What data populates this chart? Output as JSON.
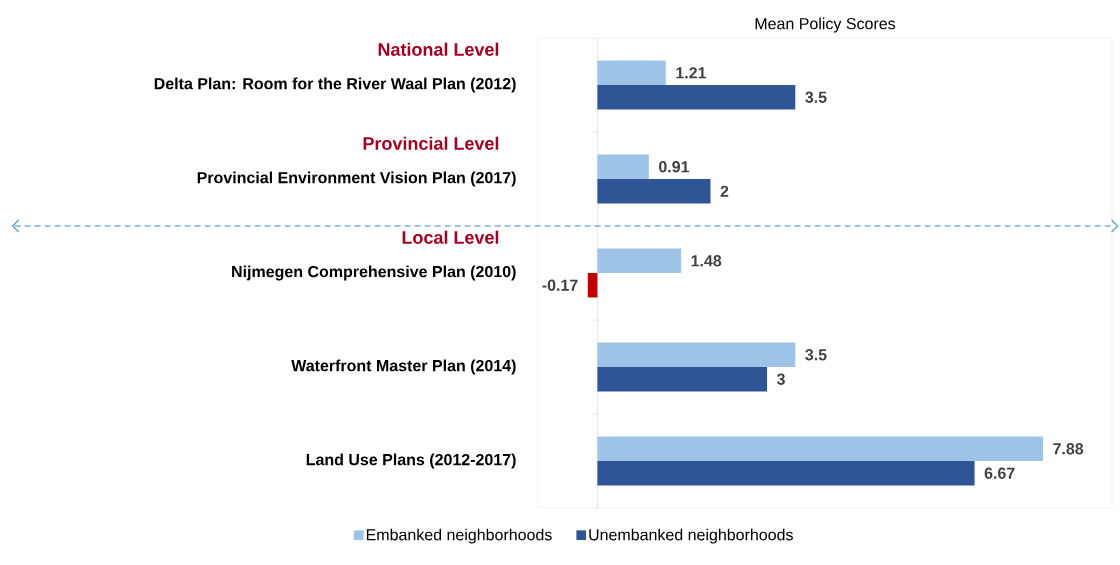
{
  "chart_data": {
    "type": "bar",
    "orientation": "horizontal",
    "title": "Mean Policy Scores",
    "categories": [
      "Delta Plan: Room for the River Waal Plan (2012)",
      "Provincial Environment Vision Plan (2017)",
      "Nijmegen Comprehensive Plan (2010)",
      "Waterfront Master Plan (2014)",
      "Land Use Plans (2012-2017)"
    ],
    "series": [
      {
        "name": "Embanked neighborhoods",
        "color": "#9dc3e6",
        "values": [
          1.21,
          0.91,
          1.48,
          3.5,
          7.88
        ]
      },
      {
        "name": "Unembanked neighborhoods",
        "color": "#2f5597",
        "colors": [
          "#2f5597",
          "#2f5597",
          "#c00000",
          "#2f5597",
          "#2f5597"
        ],
        "values": [
          3.5,
          2,
          -0.17,
          3,
          6.67
        ]
      }
    ],
    "annotations": [
      "National Level",
      "Provincial Level",
      "Local Level"
    ],
    "xlim": [
      -1.05,
      9.1
    ],
    "data_labels": true,
    "tick_labels": "y",
    "legend": "bottom"
  }
}
